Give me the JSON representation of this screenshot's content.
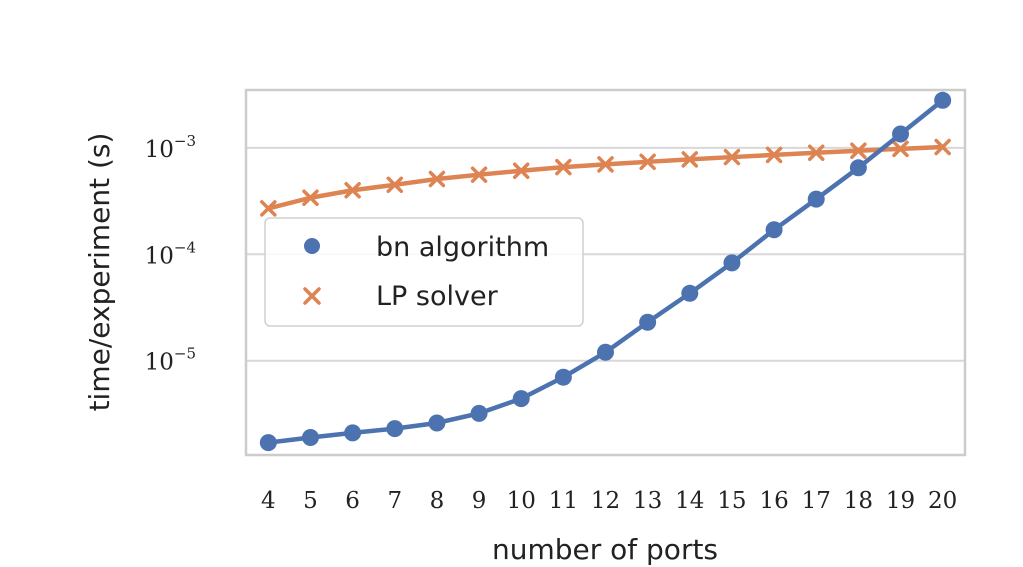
{
  "chart_data": {
    "type": "line",
    "xlabel": "number of ports",
    "ylabel": "time/experiment (s)",
    "x": [
      4,
      5,
      6,
      7,
      8,
      9,
      10,
      11,
      12,
      13,
      14,
      15,
      16,
      17,
      18,
      19,
      20
    ],
    "y_scale": "log",
    "ylim": [
      1.3e-06,
      0.0035
    ],
    "y_ticks": [
      {
        "value": 1e-05,
        "base": "10",
        "exp": "−5"
      },
      {
        "value": 0.0001,
        "base": "10",
        "exp": "−4"
      },
      {
        "value": 0.001,
        "base": "10",
        "exp": "−3"
      }
    ],
    "grid": true,
    "legend_position": "center-left",
    "series": [
      {
        "name": "bn algorithm",
        "marker": "circle",
        "color": "#4C72B0",
        "values": [
          1.7e-06,
          1.9e-06,
          2.1e-06,
          2.3e-06,
          2.6e-06,
          3.2e-06,
          4.4e-06,
          7e-06,
          1.2e-05,
          2.3e-05,
          4.3e-05,
          8.3e-05,
          0.00017,
          0.00033,
          0.00065,
          0.00135,
          0.0028
        ]
      },
      {
        "name": "LP solver",
        "marker": "x",
        "color": "#DD8452",
        "values": [
          0.00027,
          0.00034,
          0.0004,
          0.00045,
          0.00051,
          0.00056,
          0.00061,
          0.00066,
          0.0007,
          0.00074,
          0.00078,
          0.00082,
          0.00086,
          0.0009,
          0.00094,
          0.00098,
          0.00102
        ]
      }
    ]
  }
}
